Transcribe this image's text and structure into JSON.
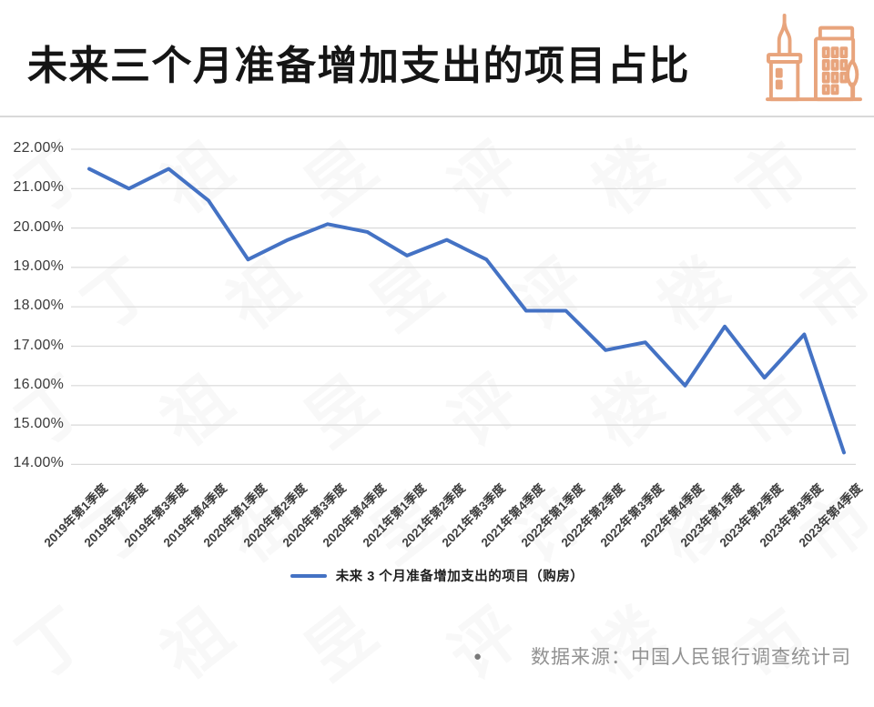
{
  "header": {
    "title": "未来三个月准备增加支出的项目占比",
    "icon": "city-buildings-icon",
    "icon_color": "#E8A47C"
  },
  "chart_data": {
    "type": "line",
    "title": "未来三个月准备增加支出的项目占比",
    "categories": [
      "2019年第1季度",
      "2019年第2季度",
      "2019年第3季度",
      "2019年第4季度",
      "2020年第1季度",
      "2020年第2季度",
      "2020年第3季度",
      "2020年第4季度",
      "2021年第1季度",
      "2021年第2季度",
      "2021年第3季度",
      "2021年第4季度",
      "2022年第1季度",
      "2022年第2季度",
      "2022年第3季度",
      "2022年第4季度",
      "2023年第1季度",
      "2023年第2季度",
      "2023年第3季度",
      "2023年第4季度"
    ],
    "series": [
      {
        "name": "未来 3 个月准备增加支出的项目（购房）",
        "color": "#4472C4",
        "values": [
          21.5,
          21.0,
          21.5,
          20.7,
          19.2,
          19.7,
          20.1,
          19.9,
          19.3,
          19.7,
          19.2,
          17.9,
          17.9,
          16.9,
          17.1,
          16.0,
          17.5,
          16.2,
          17.3,
          14.3
        ]
      }
    ],
    "xlabel": "",
    "ylabel": "",
    "ylim": [
      14,
      22
    ],
    "grid": true,
    "legend_position": "bottom",
    "y_axis": {
      "ticks": [
        {
          "label": "22.00%",
          "value": 22
        },
        {
          "label": "21.00%",
          "value": 21
        },
        {
          "label": "20.00%",
          "value": 20
        },
        {
          "label": "19.00%",
          "value": 19
        },
        {
          "label": "18.00%",
          "value": 18
        },
        {
          "label": "17.00%",
          "value": 17
        },
        {
          "label": "16.00%",
          "value": 16
        },
        {
          "label": "15.00%",
          "value": 15
        },
        {
          "label": "14.00%",
          "value": 14
        }
      ]
    }
  },
  "footer": {
    "bullet": "●",
    "source": "数据来源：中国人民银行调查统计司"
  },
  "watermark": {
    "chars": [
      "丁",
      "祖",
      "昱",
      "评",
      "楼",
      "市"
    ]
  }
}
